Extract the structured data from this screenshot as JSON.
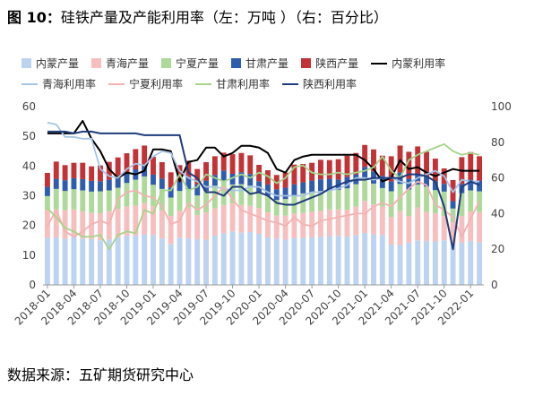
{
  "title": {
    "figure_label": "图 10：",
    "text": "硅铁产量及产能利用率（左：万吨 ）（右：百分比）"
  },
  "source": "数据来源：五矿期货研究中心",
  "colors": {
    "neimeng_prod": "#bdd3f2",
    "qinghai_prod": "#f6bfbf",
    "ningxia_prod": "#afd99b",
    "gansu_prod": "#2f5cab",
    "shaanxi_prod": "#c23337",
    "neimeng_util": "#000000",
    "qinghai_util": "#a7c4e6",
    "ningxia_util": "#f4b2b2",
    "gansu_util": "#a6d48a",
    "shaanxi_util": "#1f3d7a"
  },
  "chart_data": {
    "type": "bar",
    "stacked": true,
    "x": [
      "2018-01",
      "2018-02",
      "2018-03",
      "2018-04",
      "2018-05",
      "2018-06",
      "2018-07",
      "2018-08",
      "2018-09",
      "2018-10",
      "2018-11",
      "2018-12",
      "2019-01",
      "2019-02",
      "2019-03",
      "2019-04",
      "2019-05",
      "2019-06",
      "2019-07",
      "2019-08",
      "2019-09",
      "2019-10",
      "2019-11",
      "2019-12",
      "2020-01",
      "2020-02",
      "2020-03",
      "2020-04",
      "2020-05",
      "2020-06",
      "2020-07",
      "2020-08",
      "2020-09",
      "2020-10",
      "2020-11",
      "2020-12",
      "2021-01",
      "2021-02",
      "2021-03",
      "2021-04",
      "2021-05",
      "2021-06",
      "2021-07",
      "2021-08",
      "2021-09",
      "2021-10",
      "2021-11",
      "2021-12",
      "2022-01",
      "2022-02"
    ],
    "x_tick_labels": [
      "2018-01",
      "2018-04",
      "2018-07",
      "2018-10",
      "2019-01",
      "2019-04",
      "2019-07",
      "2019-10",
      "2020-01",
      "2020-04",
      "2020-07",
      "2020-10",
      "2021-01",
      "2021-04",
      "2021-07",
      "2021-10",
      "2022-01"
    ],
    "y_left": {
      "min": 0,
      "max": 60,
      "ticks": [
        0,
        10,
        20,
        30,
        40,
        50,
        60
      ]
    },
    "y_right": {
      "min": 0,
      "max": 100,
      "ticks": [
        0,
        20,
        40,
        60,
        80,
        100
      ]
    },
    "legend_position": "top",
    "grid": false,
    "series": [
      {
        "name": "内蒙产量",
        "kind": "bar",
        "axis": "left",
        "color_key": "neimeng_prod",
        "values": [
          15.8,
          16.0,
          15.5,
          16.2,
          15.6,
          15.4,
          15.0,
          15.3,
          16.0,
          16.5,
          16.6,
          17.0,
          16.8,
          15.6,
          13.8,
          15.9,
          15.6,
          15.4,
          15.2,
          16.6,
          17.4,
          18.0,
          17.6,
          17.8,
          17.2,
          16.0,
          15.6,
          15.2,
          15.8,
          15.8,
          16.0,
          16.2,
          16.4,
          16.5,
          16.2,
          16.8,
          17.5,
          17.0,
          16.8,
          13.6,
          13.4,
          14.2,
          15.0,
          14.8,
          14.6,
          15.0,
          13.8,
          14.2,
          14.8,
          14.4
        ]
      },
      {
        "name": "青海产量",
        "kind": "bar",
        "axis": "left",
        "color_key": "qinghai_prod",
        "values": [
          9.5,
          9.4,
          9.6,
          9.2,
          9.1,
          8.8,
          9.1,
          9.5,
          9.6,
          9.9,
          10.1,
          10.5,
          9.7,
          9.4,
          9.4,
          9.1,
          10.4,
          8.1,
          9.2,
          9.2,
          9.5,
          9.4,
          9.3,
          8.8,
          8.7,
          8.4,
          7.8,
          8.1,
          8.2,
          8.4,
          8.6,
          8.7,
          9.0,
          8.9,
          9.1,
          9.6,
          10.8,
          10.1,
          9.6,
          9.3,
          11.4,
          9.0,
          11.1,
          9.7,
          9.5,
          8.2,
          7.2,
          9.0,
          9.9,
          10.1
        ]
      },
      {
        "name": "宁夏产量",
        "kind": "bar",
        "axis": "left",
        "color_key": "ningxia_prod",
        "values": [
          4.6,
          6.9,
          6.5,
          6.8,
          7.1,
          7.2,
          7.4,
          7.0,
          7.1,
          7.9,
          8.7,
          9.0,
          7.2,
          7.3,
          6.2,
          6.6,
          6.2,
          6.6,
          7.2,
          7.6,
          7.9,
          6.4,
          7.0,
          6.8,
          5.4,
          5.6,
          5.2,
          5.6,
          6.2,
          6.6,
          6.6,
          6.7,
          6.7,
          6.6,
          7.2,
          7.5,
          7.7,
          7.0,
          6.2,
          8.6,
          9.2,
          8.9,
          7.7,
          8.6,
          7.8,
          8.2,
          4.7,
          7.7,
          7.1,
          7.0
        ]
      },
      {
        "name": "甘肃产量",
        "kind": "bar",
        "axis": "left",
        "color_key": "gansu_prod",
        "values": [
          3.1,
          3.4,
          3.6,
          3.7,
          3.8,
          3.6,
          3.4,
          3.6,
          3.8,
          3.7,
          3.5,
          3.5,
          3.4,
          3.5,
          3.4,
          3.2,
          4.2,
          3.7,
          3.5,
          3.6,
          3.7,
          3.6,
          4.0,
          3.9,
          3.6,
          3.8,
          3.6,
          3.8,
          3.6,
          3.7,
          3.9,
          3.9,
          3.6,
          3.4,
          3.8,
          3.3,
          3.7,
          4.1,
          4.1,
          3.3,
          3.8,
          3.6,
          3.4,
          3.5,
          3.0,
          2.6,
          2.5,
          3.0,
          3.6,
          3.6
        ]
      },
      {
        "name": "陕西产量",
        "kind": "bar",
        "axis": "left",
        "color_key": "shaanxi_prod",
        "values": [
          4.7,
          5.8,
          5.1,
          5.2,
          5.5,
          4.9,
          5.3,
          6.0,
          6.4,
          6.3,
          6.8,
          6.9,
          6.0,
          5.5,
          5.1,
          5.5,
          5.4,
          5.2,
          6.2,
          6.3,
          6.0,
          6.6,
          6.5,
          6.3,
          5.5,
          4.8,
          4.8,
          5.1,
          6.7,
          6.2,
          6.0,
          6.6,
          6.3,
          6.9,
          7.2,
          7.2,
          7.4,
          7.4,
          6.8,
          8.5,
          9.1,
          9.1,
          9.4,
          8.2,
          7.6,
          5.2,
          7.1,
          9.1,
          9.3,
          8.2
        ]
      },
      {
        "name": "内蒙利用率",
        "kind": "line",
        "axis": "right",
        "color_key": "neimeng_util",
        "values": [
          85,
          85,
          85,
          85,
          92,
          82,
          75,
          65,
          60,
          63,
          62,
          64,
          76,
          76,
          75,
          58,
          69,
          70,
          77,
          77,
          72,
          74,
          78,
          78,
          77,
          74,
          65,
          63,
          70,
          72,
          73,
          73,
          73,
          73,
          73,
          73,
          70,
          65,
          58,
          60,
          70,
          65,
          66,
          63,
          61,
          63,
          65,
          64,
          64,
          64
        ]
      },
      {
        "name": "青海利用率",
        "kind": "line",
        "axis": "right",
        "color_key": "qinghai_util",
        "values": [
          91,
          90,
          83,
          83,
          82,
          82,
          65,
          61,
          60,
          65,
          68,
          67,
          72,
          75,
          74,
          64,
          60,
          58,
          55,
          55,
          54,
          53,
          53,
          55,
          55,
          52,
          50,
          50,
          50,
          50,
          52,
          52,
          53,
          54,
          56,
          60,
          60,
          59,
          60,
          60,
          58,
          57,
          60,
          62,
          64,
          61,
          52,
          59,
          58,
          58
        ]
      },
      {
        "name": "宁夏利用率",
        "kind": "line",
        "axis": "right",
        "color_key": "ningxia_util",
        "values": [
          33,
          42,
          30,
          27,
          30,
          34,
          36,
          34,
          48,
          52,
          53,
          50,
          49,
          44,
          34,
          36,
          46,
          42,
          45,
          50,
          55,
          48,
          42,
          40,
          38,
          36,
          35,
          33,
          38,
          34,
          33,
          36,
          37,
          38,
          39,
          40,
          40,
          44,
          46,
          44,
          49,
          54,
          58,
          56,
          45,
          42,
          38,
          27,
          37,
          47
        ]
      },
      {
        "name": "甘肃利用率",
        "kind": "line",
        "axis": "right",
        "color_key": "gansu_util",
        "values": [
          43,
          38,
          32,
          30,
          27,
          27,
          28,
          20,
          28,
          30,
          29,
          42,
          40,
          53,
          53,
          62,
          53,
          55,
          62,
          60,
          58,
          60,
          62,
          60,
          63,
          61,
          57,
          60,
          66,
          67,
          63,
          62,
          62,
          63,
          62,
          63,
          64,
          66,
          72,
          64,
          60,
          70,
          73,
          75,
          77,
          79,
          75,
          73,
          74,
          73
        ]
      },
      {
        "name": "陕西利用率",
        "kind": "line",
        "axis": "right",
        "color_key": "shaanxi_util",
        "values": [
          86,
          86,
          86,
          85,
          86,
          86,
          85,
          85,
          85,
          85,
          85,
          84,
          84,
          84,
          84,
          84,
          63,
          60,
          52,
          52,
          50,
          55,
          55,
          51,
          52,
          50,
          46,
          45,
          45,
          47,
          49,
          51,
          54,
          56,
          58,
          59,
          59,
          60,
          60,
          60,
          60,
          62,
          62,
          61,
          58,
          44,
          20,
          55,
          58,
          56
        ]
      }
    ]
  }
}
